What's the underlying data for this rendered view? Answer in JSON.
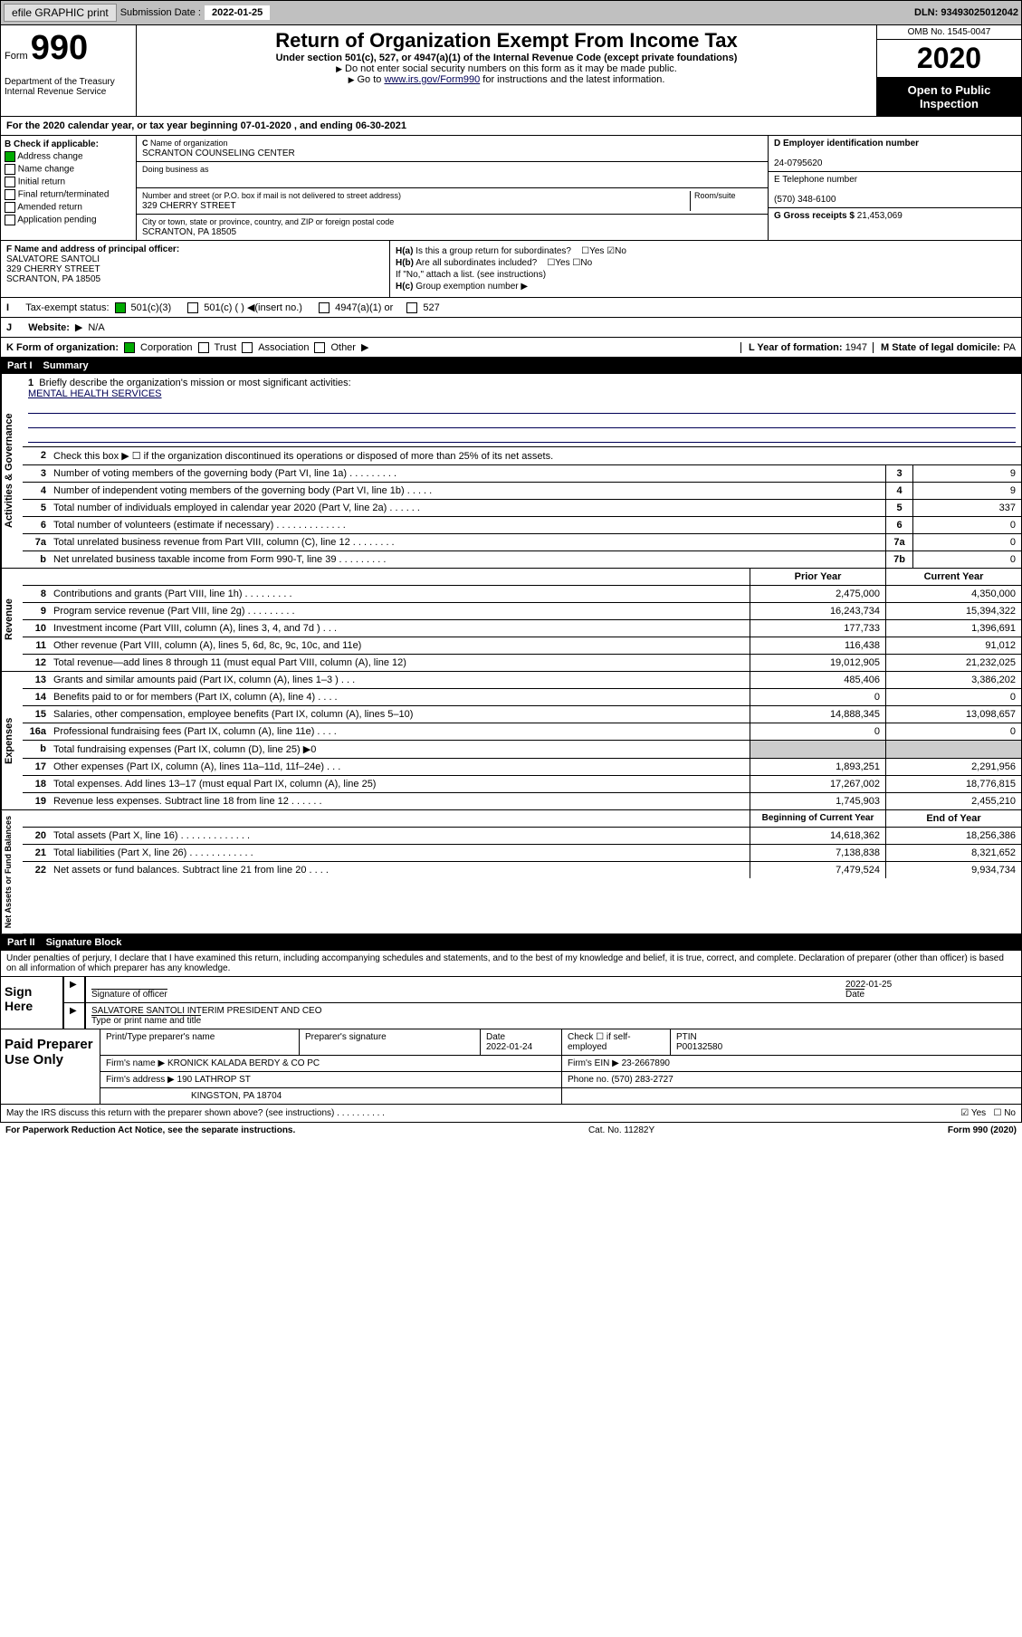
{
  "topbar": {
    "efile": "efile GRAPHIC print",
    "subdate_lbl": "Submission Date :",
    "subdate": "2022-01-25",
    "dln": "DLN: 93493025012042"
  },
  "header": {
    "form_lbl": "Form",
    "form_num": "990",
    "dept": "Department of the Treasury\nInternal Revenue Service",
    "title": "Return of Organization Exempt From Income Tax",
    "subtitle": "Under section 501(c), 527, or 4947(a)(1) of the Internal Revenue Code (except private foundations)",
    "note1": "Do not enter social security numbers on this form as it may be made public.",
    "note2": "Go to www.irs.gov/Form990 for instructions and the latest information.",
    "link_text": "www.irs.gov/Form990",
    "omb": "OMB No. 1545-0047",
    "year": "2020",
    "open": "Open to Public Inspection"
  },
  "line_a": "For the 2020 calendar year, or tax year beginning 07-01-2020    , and ending 06-30-2021",
  "check_b": {
    "lbl": "Check if applicable:",
    "items": [
      "Address change",
      "Name change",
      "Initial return",
      "Final return/terminated",
      "Amended return",
      "Application pending"
    ],
    "checked": [
      true,
      false,
      false,
      false,
      false,
      false
    ]
  },
  "org": {
    "name_lbl": "Name of organization",
    "name": "SCRANTON COUNSELING CENTER",
    "dba_lbl": "Doing business as",
    "dba": "",
    "addr_lbl": "Number and street (or P.O. box if mail is not delivered to street address)",
    "addr": "329 CHERRY STREET",
    "room_lbl": "Room/suite",
    "city_lbl": "City or town, state or province, country, and ZIP or foreign postal code",
    "city": "SCRANTON, PA  18505"
  },
  "right_info": {
    "ein_lbl": "D Employer identification number",
    "ein": "24-0795620",
    "phone_lbl": "E Telephone number",
    "phone": "(570) 348-6100",
    "gross_lbl": "G Gross receipts $",
    "gross": "21,453,069"
  },
  "section_f": {
    "f_lbl": "F  Name and address of principal officer:",
    "f_name": "SALVATORE SANTOLI",
    "f_addr1": "329 CHERRY STREET",
    "f_addr2": "SCRANTON, PA  18505",
    "ha": "Is this a group return for subordinates?",
    "ha_yes": false,
    "ha_no": true,
    "hb": "Are all subordinates included?",
    "hc": "Group exemption number",
    "hnote": "If \"No,\" attach a list. (see instructions)"
  },
  "tax_status": {
    "lbl": "Tax-exempt status:",
    "c3": true,
    "opts": [
      "501(c)(3)",
      "501(c) (  ) ◀(insert no.)",
      "4947(a)(1) or",
      "527"
    ]
  },
  "website": {
    "lbl": "Website:",
    "val": "N/A"
  },
  "line_k": {
    "lbl": "K Form of organization:",
    "opts": [
      "Corporation",
      "Trust",
      "Association",
      "Other"
    ],
    "checked": [
      true,
      false,
      false,
      false
    ],
    "l_lbl": "L Year of formation:",
    "l_val": "1947",
    "m_lbl": "M State of legal domicile:",
    "m_val": "PA"
  },
  "part1": {
    "num": "Part I",
    "title": "Summary"
  },
  "mission": {
    "lbl": "Briefly describe the organization's mission or most significant activities:",
    "val": "MENTAL HEALTH SERVICES"
  },
  "summary_rows": [
    {
      "n": "2",
      "t": "Check this box ▶ ☐  if the organization discontinued its operations or disposed of more than 25% of its net assets."
    },
    {
      "n": "3",
      "t": "Number of voting members of the governing body (Part VI, line 1a)   .    .    .    .    .    .    .    .    .",
      "b": "3",
      "v": "9"
    },
    {
      "n": "4",
      "t": "Number of independent voting members of the governing body (Part VI, line 1b)   .    .    .    .    .",
      "b": "4",
      "v": "9"
    },
    {
      "n": "5",
      "t": "Total number of individuals employed in calendar year 2020 (Part V, line 2a)   .    .    .    .    .    .",
      "b": "5",
      "v": "337"
    },
    {
      "n": "6",
      "t": "Total number of volunteers (estimate if necessary)   .    .    .    .    .    .    .    .    .    .    .    .    .",
      "b": "6",
      "v": "0"
    },
    {
      "n": "7a",
      "t": "Total unrelated business revenue from Part VIII, column (C), line 12   .    .    .    .    .    .    .    .",
      "b": "7a",
      "v": "0"
    },
    {
      "n": "b",
      "t": "Net unrelated business taxable income from Form 990-T, line 39   .    .    .    .    .    .    .    .    .",
      "b": "7b",
      "v": "0"
    }
  ],
  "amt_hdr": {
    "prior": "Prior Year",
    "curr": "Current Year"
  },
  "revenue": [
    {
      "n": "8",
      "t": "Contributions and grants (Part VIII, line 1h)   .    .    .    .    .    .    .    .    .",
      "p": "2,475,000",
      "c": "4,350,000"
    },
    {
      "n": "9",
      "t": "Program service revenue (Part VIII, line 2g)   .    .    .    .    .    .    .    .    .",
      "p": "16,243,734",
      "c": "15,394,322"
    },
    {
      "n": "10",
      "t": "Investment income (Part VIII, column (A), lines 3, 4, and 7d )    .    .    .",
      "p": "177,733",
      "c": "1,396,691"
    },
    {
      "n": "11",
      "t": "Other revenue (Part VIII, column (A), lines 5, 6d, 8c, 9c, 10c, and 11e)",
      "p": "116,438",
      "c": "91,012"
    },
    {
      "n": "12",
      "t": "Total revenue—add lines 8 through 11 (must equal Part VIII, column (A), line 12)",
      "p": "19,012,905",
      "c": "21,232,025"
    }
  ],
  "expenses": [
    {
      "n": "13",
      "t": "Grants and similar amounts paid (Part IX, column (A), lines 1–3 )   .    .    .",
      "p": "485,406",
      "c": "3,386,202"
    },
    {
      "n": "14",
      "t": "Benefits paid to or for members (Part IX, column (A), line 4)   .    .    .    .",
      "p": "0",
      "c": "0"
    },
    {
      "n": "15",
      "t": "Salaries, other compensation, employee benefits (Part IX, column (A), lines 5–10)",
      "p": "14,888,345",
      "c": "13,098,657"
    },
    {
      "n": "16a",
      "t": "Professional fundraising fees (Part IX, column (A), line 11e)    .    .    .    .",
      "p": "0",
      "c": "0"
    },
    {
      "n": "b",
      "t": "Total fundraising expenses (Part IX, column (D), line 25) ▶0",
      "p": "shade",
      "c": "shade"
    },
    {
      "n": "17",
      "t": "Other expenses (Part IX, column (A), lines 11a–11d, 11f–24e)    .    .    .",
      "p": "1,893,251",
      "c": "2,291,956"
    },
    {
      "n": "18",
      "t": "Total expenses. Add lines 13–17 (must equal Part IX, column (A), line 25)",
      "p": "17,267,002",
      "c": "18,776,815"
    },
    {
      "n": "19",
      "t": "Revenue less expenses. Subtract line 18 from line 12   .    .    .    .    .    .",
      "p": "1,745,903",
      "c": "2,455,210"
    }
  ],
  "net_hdr": {
    "b": "Beginning of Current Year",
    "e": "End of Year"
  },
  "netassets": [
    {
      "n": "20",
      "t": "Total assets (Part X, line 16)    .    .    .    .    .    .    .    .    .    .    .    .    .",
      "p": "14,618,362",
      "c": "18,256,386"
    },
    {
      "n": "21",
      "t": "Total liabilities (Part X, line 26)    .    .    .    .    .    .    .    .    .    .    .    .",
      "p": "7,138,838",
      "c": "8,321,652"
    },
    {
      "n": "22",
      "t": "Net assets or fund balances. Subtract line 21 from line 20   .    .    .    .",
      "p": "7,479,524",
      "c": "9,934,734"
    }
  ],
  "part2": {
    "num": "Part II",
    "title": "Signature Block"
  },
  "perjury": "Under penalties of perjury, I declare that I have examined this return, including accompanying schedules and statements, and to the best of my knowledge and belief, it is true, correct, and complete. Declaration of preparer (other than officer) is based on all information of which preparer has any knowledge.",
  "sign": {
    "lbl": "Sign Here",
    "sig_lbl": "Signature of officer",
    "date_lbl": "Date",
    "date": "2022-01-25",
    "name": "SALVATORE SANTOLI INTERIM PRESIDENT AND CEO",
    "name_lbl": "Type or print name and title"
  },
  "prep": {
    "lbl": "Paid Preparer Use Only",
    "r1": {
      "c1": "Print/Type preparer's name",
      "c2": "Preparer's signature",
      "c3": "Date",
      "c3v": "2022-01-24",
      "c4": "Check ☐  if self-employed",
      "c5": "PTIN",
      "c5v": "P00132580"
    },
    "r2": {
      "c1": "Firm's name    ▶",
      "c1v": "KRONICK KALADA BERDY & CO PC",
      "c2": "Firm's EIN ▶",
      "c2v": "23-2667890"
    },
    "r3": {
      "c1": "Firm's address ▶",
      "c1v": "190 LATHROP ST",
      "c2": "Phone no.",
      "c2v": "(570) 283-2727"
    },
    "r3b": "KINGSTON, PA  18704"
  },
  "discuss": {
    "t": "May the IRS discuss this return with the preparer shown above? (see instructions)   .    .    .    .    .    .    .    .    .    .",
    "yes": true,
    "no": false
  },
  "footer": {
    "l": "For Paperwork Reduction Act Notice, see the separate instructions.",
    "m": "Cat. No. 11282Y",
    "r": "Form 990 (2020)"
  }
}
